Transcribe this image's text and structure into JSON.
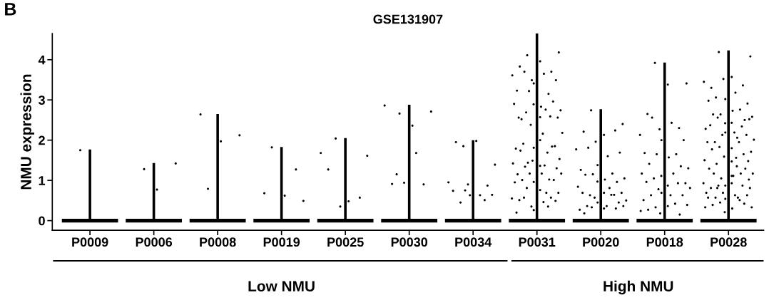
{
  "chart_data": {
    "type": "scatter",
    "title": "GSE131907",
    "ylabel": "NMU expression",
    "annotations": [
      "B",
      "Low NMU",
      "High NMU"
    ],
    "categories": [
      "P0009",
      "P0006",
      "P0008",
      "P0019",
      "P0025",
      "P0030",
      "P0034",
      "P0031",
      "P0020",
      "P0018",
      "P0028"
    ],
    "ylim": [
      -0.24,
      4.65
    ],
    "yticks": [
      0,
      1,
      2,
      3,
      4
    ],
    "grid": false,
    "legend": false,
    "marker": "circle",
    "series": [
      {
        "type": "bar",
        "color": "#000000",
        "values": [
          1.77,
          1.43,
          2.65,
          1.83,
          2.05,
          2.88,
          2.0,
          4.65,
          2.77,
          3.93,
          4.23
        ]
      },
      {
        "color": "#000000",
        "x": [
          "P0009"
        ],
        "values": [
          1.75
        ]
      },
      {
        "color": "#000000",
        "x": [
          "P0006",
          "P0006",
          "P0006"
        ],
        "values": [
          1.28,
          1.42,
          0.77
        ]
      },
      {
        "color": "#000000",
        "x": [
          "P0008",
          "P0008",
          "P0008",
          "P0008"
        ],
        "values": [
          0.79,
          2.12,
          1.97,
          2.64
        ]
      },
      {
        "color": "#000000",
        "x": [
          "P0019",
          "P0019",
          "P0019",
          "P0019",
          "P0019"
        ],
        "values": [
          1.82,
          0.49,
          0.62,
          0.68,
          1.27
        ]
      },
      {
        "color": "#000000",
        "x": [
          "P0025",
          "P0025",
          "P0025",
          "P0025",
          "P0025",
          "P0025",
          "P0025"
        ],
        "values": [
          2.04,
          1.61,
          0.48,
          1.27,
          0.57,
          0.35,
          1.68
        ]
      },
      {
        "color": "#000000",
        "x": [
          "P0030",
          "P0030",
          "P0030",
          "P0030",
          "P0030",
          "P0030",
          "P0030",
          "P0030",
          "P0030"
        ],
        "values": [
          2.66,
          2.71,
          2.36,
          0.91,
          0.9,
          0.94,
          2.86,
          1.68,
          1.15
        ]
      },
      {
        "color": "#000000",
        "x": [
          "P0034",
          "P0034",
          "P0034",
          "P0034",
          "P0034",
          "P0034",
          "P0034",
          "P0034",
          "P0034",
          "P0034",
          "P0034",
          "P0034",
          "P0034",
          "P0034"
        ],
        "values": [
          1.85,
          1.39,
          1.98,
          1.95,
          0.87,
          0.9,
          0.95,
          0.63,
          0.45,
          0.64,
          0.63,
          0.74,
          0.51,
          0.75
        ]
      },
      {
        "color": "#000000",
        "x": [
          "P0031",
          "P0031",
          "P0031",
          "P0031",
          "P0031",
          "P0031",
          "P0031",
          "P0031",
          "P0031",
          "P0031",
          "P0031",
          "P0031",
          "P0031",
          "P0031",
          "P0031",
          "P0031",
          "P0031",
          "P0031",
          "P0031",
          "P0031",
          "P0031",
          "P0031",
          "P0031",
          "P0031",
          "P0031",
          "P0031",
          "P0031",
          "P0031",
          "P0031",
          "P0031",
          "P0031",
          "P0031",
          "P0031",
          "P0031",
          "P0031",
          "P0031",
          "P0031",
          "P0031",
          "P0031",
          "P0031",
          "P0031",
          "P0031",
          "P0031",
          "P0031",
          "P0031",
          "P0031",
          "P0031",
          "P0031",
          "P0031",
          "P0031",
          "P0031",
          "P0031",
          "P0031",
          "P0031",
          "P0031",
          "P0031",
          "P0031",
          "P0031",
          "P0031",
          "P0031",
          "P0031",
          "P0031",
          "P0031",
          "P0031",
          "P0031",
          "P0031",
          "P0031",
          "P0031"
        ],
        "values": [
          4.11,
          4.18,
          3.96,
          3.83,
          3.7,
          3.49,
          3.61,
          3.65,
          3.7,
          3.49,
          3.41,
          3.23,
          3.15,
          3.22,
          2.74,
          2.83,
          2.52,
          2.96,
          2.89,
          2.9,
          2.76,
          2.69,
          2.56,
          2.57,
          2.56,
          2.59,
          2.38,
          2.18,
          2.16,
          1.91,
          1.85,
          1.81,
          1.79,
          1.69,
          1.44,
          1.53,
          2.0,
          1.74,
          1.84,
          1.49,
          1.42,
          1.37,
          1.34,
          1.3,
          1.36,
          1.15,
          1.02,
          1.17,
          1.17,
          1.17,
          1.01,
          1.01,
          0.96,
          0.95,
          0.69,
          0.81,
          0.69,
          0.76,
          0.51,
          0.57,
          0.35,
          0.55,
          0.46,
          0.57,
          0.49,
          0.26,
          0.2,
          0.35
        ]
      },
      {
        "color": "#000000",
        "x": [
          "P0020",
          "P0020",
          "P0020",
          "P0020",
          "P0020",
          "P0020",
          "P0020",
          "P0020",
          "P0020",
          "P0020",
          "P0020",
          "P0020",
          "P0020",
          "P0020",
          "P0020",
          "P0020",
          "P0020",
          "P0020",
          "P0020",
          "P0020",
          "P0020",
          "P0020",
          "P0020",
          "P0020",
          "P0020",
          "P0020",
          "P0020",
          "P0020",
          "P0020",
          "P0020",
          "P0020",
          "P0020",
          "P0020",
          "P0020",
          "P0020",
          "P0020",
          "P0020",
          "P0020",
          "P0020"
        ],
        "values": [
          2.74,
          2.4,
          2.13,
          2.21,
          2.24,
          1.96,
          1.77,
          1.6,
          1.81,
          1.69,
          1.38,
          1.26,
          1.17,
          1.15,
          1.05,
          1.02,
          1.14,
          0.96,
          0.97,
          0.84,
          0.81,
          0.63,
          0.69,
          0.69,
          0.69,
          0.64,
          0.57,
          0.5,
          0.36,
          0.36,
          0.45,
          0.45,
          0.27,
          0.64,
          0.33,
          0.36,
          0.3,
          0.18,
          0.3
        ]
      },
      {
        "color": "#000000",
        "x": [
          "P0018",
          "P0018",
          "P0018",
          "P0018",
          "P0018",
          "P0018",
          "P0018",
          "P0018",
          "P0018",
          "P0018",
          "P0018",
          "P0018",
          "P0018",
          "P0018",
          "P0018",
          "P0018",
          "P0018",
          "P0018",
          "P0018",
          "P0018",
          "P0018",
          "P0018",
          "P0018",
          "P0018",
          "P0018",
          "P0018",
          "P0018",
          "P0018",
          "P0018",
          "P0018",
          "P0018",
          "P0018",
          "P0018",
          "P0018",
          "P0018",
          "P0018",
          "P0018",
          "P0018",
          "P0018",
          "P0018",
          "P0018"
        ],
        "values": [
          3.92,
          3.41,
          3.38,
          2.65,
          2.3,
          2.27,
          2.13,
          2.43,
          2.56,
          2.0,
          2.0,
          1.68,
          1.65,
          1.65,
          1.3,
          1.57,
          1.41,
          1.35,
          1.11,
          1.17,
          1.17,
          1.05,
          0.93,
          0.87,
          0.96,
          0.93,
          0.78,
          0.81,
          0.63,
          0.63,
          0.63,
          0.69,
          0.51,
          0.42,
          0.33,
          0.39,
          0.36,
          0.27,
          0.15,
          0.18,
          0.24
        ]
      },
      {
        "color": "#000000",
        "x": [
          "P0028",
          "P0028",
          "P0028",
          "P0028",
          "P0028",
          "P0028",
          "P0028",
          "P0028",
          "P0028",
          "P0028",
          "P0028",
          "P0028",
          "P0028",
          "P0028",
          "P0028",
          "P0028",
          "P0028",
          "P0028",
          "P0028",
          "P0028",
          "P0028",
          "P0028",
          "P0028",
          "P0028",
          "P0028",
          "P0028",
          "P0028",
          "P0028",
          "P0028",
          "P0028",
          "P0028",
          "P0028",
          "P0028",
          "P0028",
          "P0028",
          "P0028",
          "P0028",
          "P0028",
          "P0028",
          "P0028",
          "P0028",
          "P0028",
          "P0028",
          "P0028",
          "P0028",
          "P0028",
          "P0028",
          "P0028",
          "P0028",
          "P0028",
          "P0028",
          "P0028",
          "P0028",
          "P0028",
          "P0028",
          "P0028",
          "P0028",
          "P0028",
          "P0028",
          "P0028",
          "P0028",
          "P0028",
          "P0028",
          "P0028",
          "P0028",
          "P0028",
          "P0028",
          "P0028",
          "P0028",
          "P0028",
          "P0028",
          "P0028",
          "P0028",
          "P0028",
          "P0028",
          "P0028",
          "P0028",
          "P0028",
          "P0028"
        ],
        "values": [
          4.19,
          4.08,
          3.57,
          3.3,
          3.36,
          3.52,
          3.45,
          3.18,
          3.06,
          2.91,
          3.02,
          2.98,
          2.76,
          2.64,
          2.58,
          2.73,
          2.64,
          2.5,
          2.42,
          2.28,
          2.06,
          2.56,
          2.52,
          2.43,
          2.37,
          2.34,
          2.13,
          2.01,
          2.19,
          1.95,
          2.13,
          2.19,
          1.95,
          1.95,
          1.83,
          1.71,
          1.8,
          1.77,
          1.65,
          1.59,
          1.5,
          1.56,
          1.41,
          1.48,
          1.47,
          1.29,
          1.17,
          1.05,
          1.17,
          1.11,
          1.17,
          1.29,
          0.87,
          0.69,
          0.57,
          0.87,
          0.81,
          0.93,
          0.81,
          0.87,
          0.69,
          0.93,
          0.63,
          0.57,
          0.63,
          0.54,
          0.57,
          0.51,
          0.45,
          0.33,
          0.3,
          0.39,
          0.42,
          0.21,
          0.33,
          1.35,
          0.81,
          1.02,
          1.11
        ]
      }
    ]
  }
}
